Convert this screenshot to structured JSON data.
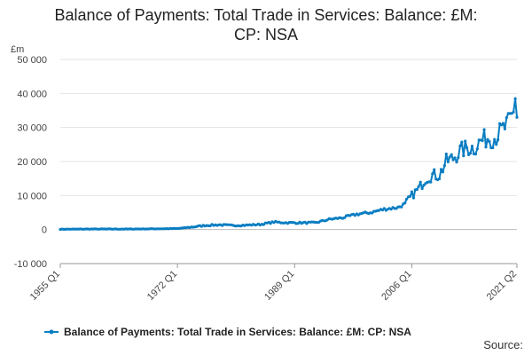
{
  "chart_data": {
    "type": "line",
    "title_lines": [
      "Balance of Payments: Total Trade in Services: Balance: £M:",
      "CP: NSA"
    ],
    "ylabel": "£m",
    "ylim": [
      -10000,
      50000
    ],
    "yticks": [
      -10000,
      0,
      10000,
      20000,
      30000,
      40000,
      50000
    ],
    "ytick_labels": [
      "-10 000",
      "0",
      "10 000",
      "20 000",
      "30 000",
      "40 000",
      "50 000"
    ],
    "x_range": [
      "1955 Q1",
      "2021 Q2"
    ],
    "xtick_labels": [
      "1955 Q1",
      "1972 Q1",
      "1989 Q1",
      "2006 Q1",
      "2021 Q2"
    ],
    "xtick_quarter_index": [
      0,
      68,
      136,
      204,
      265
    ],
    "series_name": "Balance of Payments: Total Trade in Services: Balance: £M: CP: NSA",
    "series_color": "#0a7dc2",
    "grid": "horizontal",
    "legend_position": "bottom",
    "anchors": [
      [
        "1955 Q1",
        100
      ],
      [
        "1960 Q1",
        150
      ],
      [
        "1965 Q1",
        150
      ],
      [
        "1970 Q1",
        250
      ],
      [
        "1972 Q1",
        300
      ],
      [
        "1974 Q1",
        700
      ],
      [
        "1976 Q1",
        1200
      ],
      [
        "1978 Q1",
        1400
      ],
      [
        "1980 Q1",
        1200
      ],
      [
        "1982 Q1",
        1300
      ],
      [
        "1984 Q1",
        1500
      ],
      [
        "1986 Q1",
        2200
      ],
      [
        "1988 Q1",
        2000
      ],
      [
        "1990 Q1",
        2000
      ],
      [
        "1992 Q1",
        2000
      ],
      [
        "1994 Q1",
        3000
      ],
      [
        "1996 Q1",
        3500
      ],
      [
        "1998 Q1",
        4500
      ],
      [
        "2000 Q1",
        5000
      ],
      [
        "2002 Q1",
        6000
      ],
      [
        "2004 Q1",
        6500
      ],
      [
        "2005 Q1",
        7500
      ],
      [
        "2006 Q1",
        10000
      ],
      [
        "2007 Q1",
        12000
      ],
      [
        "2008 Q1",
        15000
      ],
      [
        "2009 Q1",
        16000
      ],
      [
        "2010 Q1",
        16000
      ],
      [
        "2011 Q1",
        20000
      ],
      [
        "2012 Q1",
        21000
      ],
      [
        "2013 Q1",
        23000
      ],
      [
        "2014 Q1",
        24000
      ],
      [
        "2015 Q1",
        24000
      ],
      [
        "2016 Q1",
        26000
      ],
      [
        "2017 Q1",
        27000
      ],
      [
        "2018 Q1",
        27000
      ],
      [
        "2019 Q1",
        29000
      ],
      [
        "2020 Q1",
        31000
      ],
      [
        "2020 Q4",
        34000
      ],
      [
        "2021 Q1",
        38500
      ],
      [
        "2021 Q2",
        33000
      ]
    ]
  },
  "source_label": "Source:"
}
